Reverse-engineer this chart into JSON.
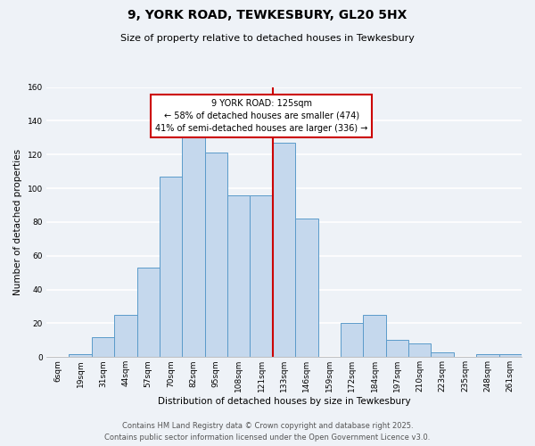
{
  "title": "9, YORK ROAD, TEWKESBURY, GL20 5HX",
  "subtitle": "Size of property relative to detached houses in Tewkesbury",
  "xlabel": "Distribution of detached houses by size in Tewkesbury",
  "ylabel": "Number of detached properties",
  "bar_labels": [
    "6sqm",
    "19sqm",
    "31sqm",
    "44sqm",
    "57sqm",
    "70sqm",
    "82sqm",
    "95sqm",
    "108sqm",
    "121sqm",
    "133sqm",
    "146sqm",
    "159sqm",
    "172sqm",
    "184sqm",
    "197sqm",
    "210sqm",
    "223sqm",
    "235sqm",
    "248sqm",
    "261sqm"
  ],
  "bar_values": [
    0,
    2,
    12,
    25,
    53,
    107,
    131,
    121,
    96,
    96,
    127,
    82,
    0,
    20,
    25,
    10,
    8,
    3,
    0,
    2,
    2
  ],
  "bar_color": "#c5d8ed",
  "bar_edge_color": "#5b9bca",
  "marker_x_label": "121sqm",
  "marker_line_color": "#cc0000",
  "annotation_line1": "9 YORK ROAD: 125sqm",
  "annotation_line2": "← 58% of detached houses are smaller (474)",
  "annotation_line3": "41% of semi-detached houses are larger (336) →",
  "ylim": [
    0,
    160
  ],
  "yticks": [
    0,
    20,
    40,
    60,
    80,
    100,
    120,
    140,
    160
  ],
  "footer_line1": "Contains HM Land Registry data © Crown copyright and database right 2025.",
  "footer_line2": "Contains public sector information licensed under the Open Government Licence v3.0.",
  "background_color": "#eef2f7",
  "grid_color": "#ffffff",
  "title_fontsize": 10,
  "subtitle_fontsize": 8,
  "axis_label_fontsize": 7.5,
  "tick_fontsize": 6.5,
  "annotation_fontsize": 7,
  "footer_fontsize": 6
}
